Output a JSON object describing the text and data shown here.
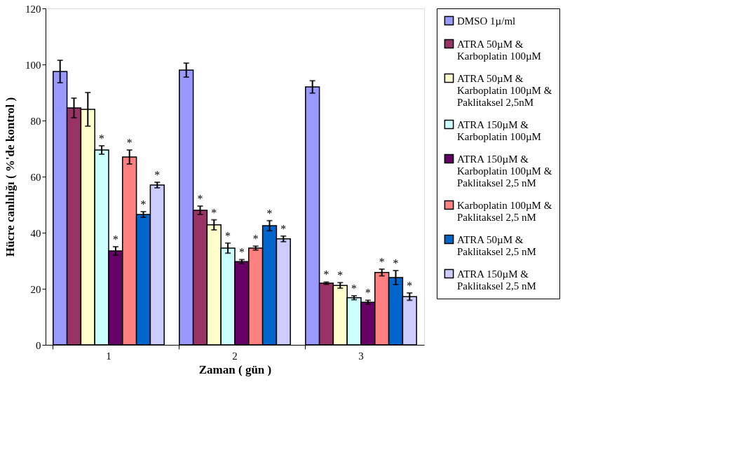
{
  "chart_data": {
    "type": "bar",
    "xlabel": "Zaman ( gün )",
    "ylabel": "Hücre canlılığı ( %'de kontrol )",
    "categories": [
      "1",
      "2",
      "3"
    ],
    "ylim": [
      0,
      120
    ],
    "yticks": [
      0,
      20,
      40,
      60,
      80,
      100,
      120
    ],
    "grid": false,
    "legend": "right",
    "series": [
      {
        "name": "DMSO 1µ/ml",
        "color": "#9999ff",
        "values": [
          97.5,
          98,
          92
        ],
        "errors": [
          4,
          2.5,
          2.2
        ]
      },
      {
        "name": "ATRA 50µM & Karboplatin 100µM",
        "color": "#993366",
        "values": [
          84.5,
          48,
          22
        ],
        "errors": [
          3.5,
          1.5,
          0.4
        ],
        "value_labels": [
          null,
          "*",
          "*"
        ]
      },
      {
        "name": "ATRA 50µM & Karboplatin 100µM & Paklitaksel 2,5nM",
        "color": "#ffffcc",
        "values": [
          84,
          42.8,
          21.2
        ],
        "errors": [
          6,
          1.8,
          1
        ],
        "value_labels": [
          null,
          "*",
          "*"
        ]
      },
      {
        "name": "ATRA 150µM & Karboplatin 100µM",
        "color": "#ccffff",
        "values": [
          69.5,
          34.5,
          16.8
        ],
        "errors": [
          1.5,
          1.8,
          0.7
        ],
        "value_labels": [
          "*",
          "*",
          "*"
        ]
      },
      {
        "name": "ATRA 150µM & Karboplatin 100µM & Paklitaksel 2,5 nM",
        "color": "#660066",
        "values": [
          33.5,
          29.7,
          15.2
        ],
        "errors": [
          1.5,
          0.7,
          0.7
        ],
        "value_labels": [
          "*",
          "*",
          "*"
        ]
      },
      {
        "name": "Karboplatin 100µM & Paklitaksel 2,5 nM",
        "color": "#ff8080",
        "values": [
          67,
          34.5,
          25.8
        ],
        "errors": [
          2.5,
          0.7,
          1.2
        ],
        "value_labels": [
          "*",
          "*",
          "*"
        ]
      },
      {
        "name": "ATRA 50µM & Paklitaksel 2,5 nM",
        "color": "#0066cc",
        "values": [
          46.5,
          42.5,
          24
        ],
        "errors": [
          1,
          1.8,
          2.5
        ],
        "value_labels": [
          "*",
          "*",
          "*"
        ]
      },
      {
        "name": "ATRA 150µM & Paklitaksel 2,5 nM",
        "color": "#ccccff",
        "values": [
          57,
          37.8,
          17.2
        ],
        "errors": [
          1,
          1,
          1.3
        ],
        "value_labels": [
          "*",
          "*",
          "*"
        ]
      }
    ]
  }
}
